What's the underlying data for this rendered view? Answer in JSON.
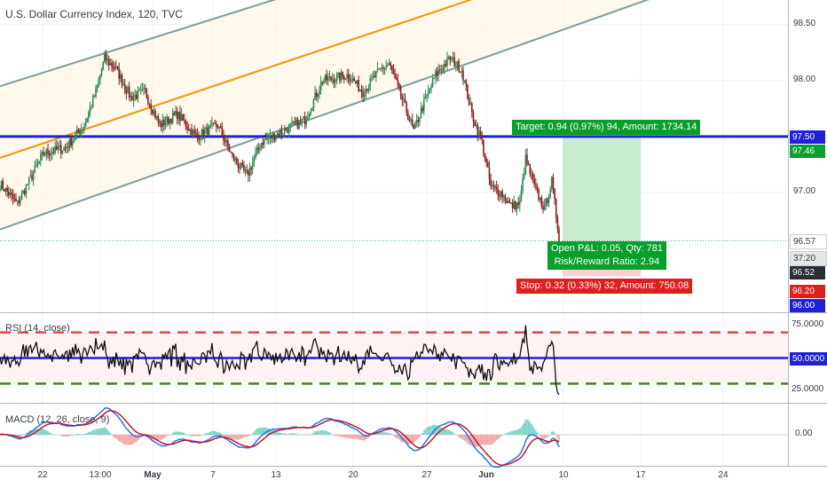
{
  "title": "U.S. Dollar Currency Index, 120, TVC",
  "chart_data": {
    "type": "candlestick",
    "price_panel": {
      "ylim": [
        95.93,
        98.72
      ],
      "y_ticks": [
        98.5,
        98.0,
        97.5,
        97.0
      ],
      "y_tick_labels": [
        "98.50",
        "98.00",
        "97.50",
        "97.00"
      ],
      "price_series_anchors": [
        {
          "i": 0,
          "v": 97.08
        },
        {
          "i": 12,
          "v": 96.9
        },
        {
          "i": 30,
          "v": 97.35
        },
        {
          "i": 45,
          "v": 97.4
        },
        {
          "i": 58,
          "v": 97.6
        },
        {
          "i": 66,
          "v": 97.9
        },
        {
          "i": 72,
          "v": 98.2
        },
        {
          "i": 80,
          "v": 98.1
        },
        {
          "i": 90,
          "v": 97.85
        },
        {
          "i": 100,
          "v": 97.9
        },
        {
          "i": 110,
          "v": 97.6
        },
        {
          "i": 122,
          "v": 97.7
        },
        {
          "i": 135,
          "v": 97.5
        },
        {
          "i": 150,
          "v": 97.6
        },
        {
          "i": 160,
          "v": 97.32
        },
        {
          "i": 170,
          "v": 97.15
        },
        {
          "i": 180,
          "v": 97.45
        },
        {
          "i": 195,
          "v": 97.55
        },
        {
          "i": 210,
          "v": 97.65
        },
        {
          "i": 222,
          "v": 98.0
        },
        {
          "i": 240,
          "v": 98.05
        },
        {
          "i": 250,
          "v": 97.9
        },
        {
          "i": 262,
          "v": 98.1
        },
        {
          "i": 268,
          "v": 98.15
        },
        {
          "i": 275,
          "v": 97.9
        },
        {
          "i": 285,
          "v": 97.55
        },
        {
          "i": 292,
          "v": 97.8
        },
        {
          "i": 300,
          "v": 98.05
        },
        {
          "i": 310,
          "v": 98.2
        },
        {
          "i": 318,
          "v": 98.1
        },
        {
          "i": 325,
          "v": 97.7
        },
        {
          "i": 332,
          "v": 97.45
        },
        {
          "i": 338,
          "v": 97.05
        },
        {
          "i": 345,
          "v": 97.0
        },
        {
          "i": 352,
          "v": 96.88
        },
        {
          "i": 358,
          "v": 96.9
        },
        {
          "i": 362,
          "v": 97.3
        },
        {
          "i": 368,
          "v": 97.05
        },
        {
          "i": 375,
          "v": 96.85
        },
        {
          "i": 380,
          "v": 97.1
        },
        {
          "i": 385,
          "v": 96.6
        }
      ],
      "horizontal_line": {
        "value": 97.5,
        "color": "#1e22d6"
      },
      "channel": {
        "lower_start": 96.67,
        "lower_end": 98.92,
        "upper_start": 97.95,
        "upper_end": 99.95,
        "midline_start": 97.31,
        "midline_end": 99.44
      },
      "position": {
        "entry": 96.57,
        "target": 97.5,
        "stop": 96.25,
        "target_label": "Target: 0.94 (0.97%) 94, Amount: 1734.14",
        "open_pl_label": "Open P&L: 0.05, Qty: 781",
        "rr_label": "Risk/Reward Ratio: 2.94",
        "stop_label": "Stop: 0.32 (0.33%) 32, Amount: 750.08"
      },
      "axis_tags": [
        {
          "label": "97.50",
          "value": 97.5,
          "color": "#1e22d6"
        },
        {
          "label": "97.46",
          "value": 97.37,
          "color": "#089f2b"
        },
        {
          "label": "96.57",
          "value": 96.57,
          "color": "#ffffff"
        },
        {
          "label": "37:20",
          "value": 96.42,
          "color": "#e6e6e6"
        },
        {
          "label": "96.52",
          "value": 96.29,
          "color": "#2a2e39"
        },
        {
          "label": "96.20",
          "value": 96.12,
          "color": "#e01e1e"
        },
        {
          "label": "96.00",
          "value": 95.99,
          "color": "#1e22d6"
        }
      ]
    },
    "rsi_panel": {
      "label": "RSI (14, close)",
      "ylim": [
        15,
        85
      ],
      "y_tick_labels": [
        "75.0000",
        "50.0000",
        "25.0000"
      ],
      "y_ticks": [
        75,
        50,
        25
      ],
      "levels": [
        70,
        50,
        30
      ],
      "current_tag": "50.0000"
    },
    "macd_panel": {
      "label": "MACD (12, 26, close, 9)",
      "ylim": [
        -1.0,
        1.0
      ],
      "y_tick_labels": [
        "0.00"
      ],
      "y_ticks": [
        0
      ]
    },
    "x_tick_labels": [
      "22",
      "13:00",
      "May",
      "7",
      "13",
      "20",
      "27",
      "Jun",
      "10",
      "17",
      "24"
    ],
    "x_tick_positions": [
      24,
      52,
      81,
      110,
      139,
      179,
      216,
      246,
      288,
      320,
      364
    ]
  }
}
